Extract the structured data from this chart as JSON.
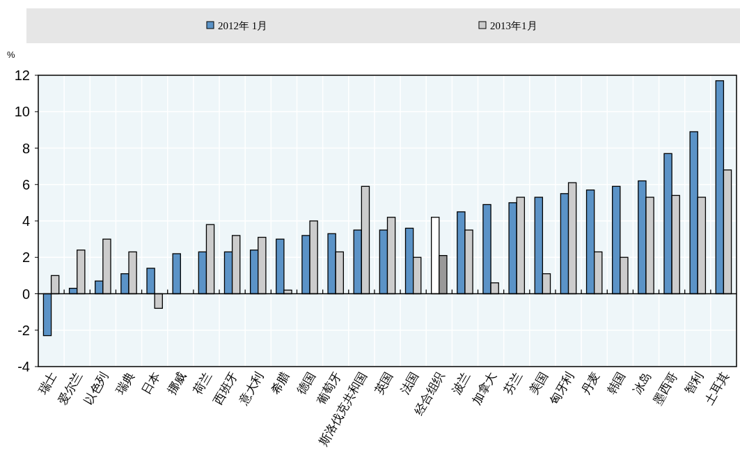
{
  "chart_data": {
    "type": "bar",
    "ylabel": "%",
    "legend": "top",
    "grid": true,
    "ylim": [
      -4,
      12
    ],
    "yticks": [
      -4,
      -2,
      0,
      2,
      4,
      6,
      8,
      10,
      12
    ],
    "categories": [
      "瑞士",
      "爱尔兰",
      "以色列",
      "瑞典",
      "日本",
      "挪威",
      "荷兰",
      "西班牙",
      "意大利",
      "希腊",
      "德国",
      "葡萄牙",
      "斯洛伐克共和国",
      "英国",
      "法国",
      "经合组织",
      "波兰",
      "加拿大",
      "芬兰",
      "美国",
      "匈牙利",
      "丹麦",
      "韩国",
      "冰岛",
      "墨西哥",
      "智利",
      "土耳其"
    ],
    "series": [
      {
        "name": "2012年 1月",
        "color": "#5b93c7",
        "colors": [
          "#5b93c7",
          "#5b93c7",
          "#5b93c7",
          "#5b93c7",
          "#5b93c7",
          "#5b93c7",
          "#5b93c7",
          "#5b93c7",
          "#5b93c7",
          "#5b93c7",
          "#5b93c7",
          "#5b93c7",
          "#5b93c7",
          "#5b93c7",
          "#5b93c7",
          "#ffffff",
          "#5b93c7",
          "#5b93c7",
          "#5b93c7",
          "#5b93c7",
          "#5b93c7",
          "#5b93c7",
          "#5b93c7",
          "#5b93c7",
          "#5b93c7",
          "#5b93c7",
          "#5b93c7"
        ],
        "values": [
          -2.3,
          0.3,
          0.7,
          1.1,
          1.4,
          2.2,
          2.3,
          2.3,
          2.4,
          3.0,
          3.2,
          3.3,
          3.5,
          3.5,
          3.6,
          4.2,
          4.5,
          4.9,
          5.0,
          5.3,
          5.5,
          5.7,
          5.9,
          6.2,
          7.7,
          8.9,
          11.7
        ]
      },
      {
        "name": "2013年1月",
        "color": "#cccccc",
        "colors": [
          "#cccccc",
          "#cccccc",
          "#cccccc",
          "#cccccc",
          "#cccccc",
          "#cccccc",
          "#cccccc",
          "#cccccc",
          "#cccccc",
          "#cccccc",
          "#cccccc",
          "#cccccc",
          "#cccccc",
          "#cccccc",
          "#cccccc",
          "#999999",
          "#cccccc",
          "#cccccc",
          "#cccccc",
          "#cccccc",
          "#cccccc",
          "#cccccc",
          "#cccccc",
          "#cccccc",
          "#cccccc",
          "#cccccc",
          "#cccccc"
        ],
        "values": [
          1.0,
          2.4,
          3.0,
          2.3,
          -0.8,
          null,
          3.8,
          3.2,
          3.1,
          0.2,
          4.0,
          2.3,
          5.9,
          4.2,
          2.0,
          2.1,
          3.5,
          0.6,
          5.3,
          1.1,
          6.1,
          2.3,
          2.0,
          5.3,
          5.4,
          5.3,
          6.8
        ]
      }
    ]
  }
}
